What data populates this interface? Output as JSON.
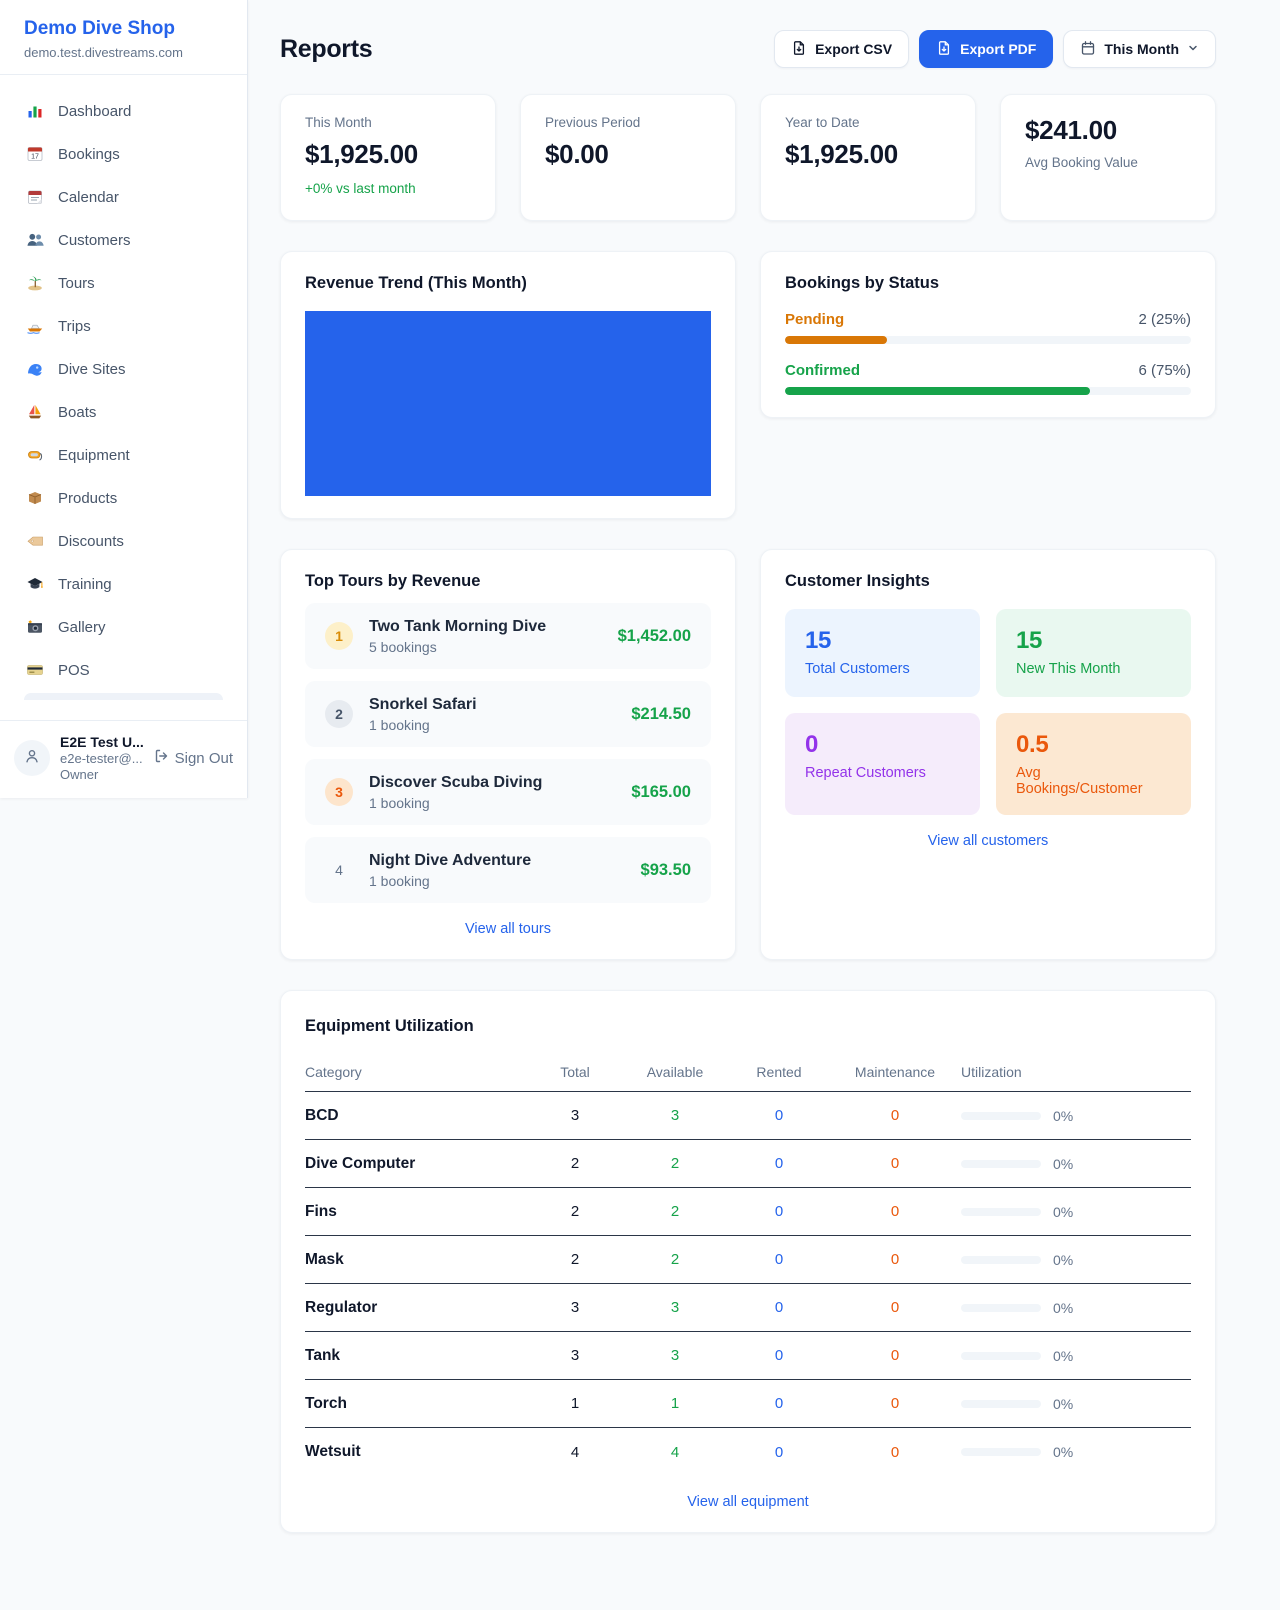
{
  "brand": {
    "name": "Demo Dive Shop",
    "domain": "demo.test.divestreams.com"
  },
  "sidebar": {
    "items": [
      {
        "icon": "dashboard-icon",
        "label": "Dashboard"
      },
      {
        "icon": "bookings-icon",
        "label": "Bookings"
      },
      {
        "icon": "calendar-icon",
        "label": "Calendar"
      },
      {
        "icon": "customers-icon",
        "label": "Customers"
      },
      {
        "icon": "tours-icon",
        "label": "Tours"
      },
      {
        "icon": "trips-icon",
        "label": "Trips"
      },
      {
        "icon": "dive-sites-icon",
        "label": "Dive Sites"
      },
      {
        "icon": "boats-icon",
        "label": "Boats"
      },
      {
        "icon": "equipment-icon",
        "label": "Equipment"
      },
      {
        "icon": "products-icon",
        "label": "Products"
      },
      {
        "icon": "discounts-icon",
        "label": "Discounts"
      },
      {
        "icon": "training-icon",
        "label": "Training"
      },
      {
        "icon": "gallery-icon",
        "label": "Gallery"
      },
      {
        "icon": "pos-icon",
        "label": "POS"
      }
    ]
  },
  "user": {
    "name": "E2E Test U...",
    "email": "e2e-tester@...",
    "role": "Owner",
    "sign_out": "Sign Out"
  },
  "header": {
    "title": "Reports",
    "export_csv": "Export CSV",
    "export_pdf": "Export PDF",
    "period": "This Month"
  },
  "stats": {
    "this_month": {
      "label": "This Month",
      "value": "$1,925.00",
      "delta": "+0% vs last month"
    },
    "previous_period": {
      "label": "Previous Period",
      "value": "$0.00"
    },
    "year_to_date": {
      "label": "Year to Date",
      "value": "$1,925.00"
    },
    "avg_booking": {
      "value": "$241.00",
      "label": "Avg Booking Value"
    }
  },
  "revenue_trend": {
    "title": "Revenue Trend (This Month)",
    "bar_color": "#2563eb"
  },
  "bookings_by_status": {
    "title": "Bookings by Status",
    "rows": [
      {
        "label": "Pending",
        "count": "2 (25%)",
        "pct": 25,
        "color": "#d97706"
      },
      {
        "label": "Confirmed",
        "count": "6 (75%)",
        "pct": 75,
        "color": "#16a34a"
      }
    ]
  },
  "top_tours": {
    "title": "Top Tours by Revenue",
    "link": "View all tours",
    "rows": [
      {
        "rank": "1",
        "name": "Two Tank Morning Dive",
        "bookings": "5 bookings",
        "revenue": "$1,452.00"
      },
      {
        "rank": "2",
        "name": "Snorkel Safari",
        "bookings": "1 booking",
        "revenue": "$214.50"
      },
      {
        "rank": "3",
        "name": "Discover Scuba Diving",
        "bookings": "1 booking",
        "revenue": "$165.00"
      },
      {
        "rank": "4",
        "name": "Night Dive Adventure",
        "bookings": "1 booking",
        "revenue": "$93.50"
      }
    ]
  },
  "customer_insights": {
    "title": "Customer Insights",
    "link": "View all customers",
    "tiles": [
      {
        "value": "15",
        "label": "Total Customers",
        "color": "#2563eb",
        "bg": "#ecf4fe"
      },
      {
        "value": "15",
        "label": "New This Month",
        "color": "#16a34a",
        "bg": "#e9f8f0"
      },
      {
        "value": "0",
        "label": "Repeat Customers",
        "color": "#9333ea",
        "bg": "#f5ecfb"
      },
      {
        "value": "0.5",
        "label": "Avg Bookings/Customer",
        "color": "#ea580c",
        "bg": "#fce8d2"
      }
    ]
  },
  "equipment": {
    "title": "Equipment Utilization",
    "link": "View all equipment",
    "columns": [
      "Category",
      "Total",
      "Available",
      "Rented",
      "Maintenance",
      "Utilization"
    ],
    "rows": [
      {
        "category": "BCD",
        "total": "3",
        "available": "3",
        "rented": "0",
        "maintenance": "0",
        "utilization": "0%"
      },
      {
        "category": "Dive Computer",
        "total": "2",
        "available": "2",
        "rented": "0",
        "maintenance": "0",
        "utilization": "0%"
      },
      {
        "category": "Fins",
        "total": "2",
        "available": "2",
        "rented": "0",
        "maintenance": "0",
        "utilization": "0%"
      },
      {
        "category": "Mask",
        "total": "2",
        "available": "2",
        "rented": "0",
        "maintenance": "0",
        "utilization": "0%"
      },
      {
        "category": "Regulator",
        "total": "3",
        "available": "3",
        "rented": "0",
        "maintenance": "0",
        "utilization": "0%"
      },
      {
        "category": "Tank",
        "total": "3",
        "available": "3",
        "rented": "0",
        "maintenance": "0",
        "utilization": "0%"
      },
      {
        "category": "Torch",
        "total": "1",
        "available": "1",
        "rented": "0",
        "maintenance": "0",
        "utilization": "0%"
      },
      {
        "category": "Wetsuit",
        "total": "4",
        "available": "4",
        "rented": "0",
        "maintenance": "0",
        "utilization": "0%"
      }
    ]
  }
}
